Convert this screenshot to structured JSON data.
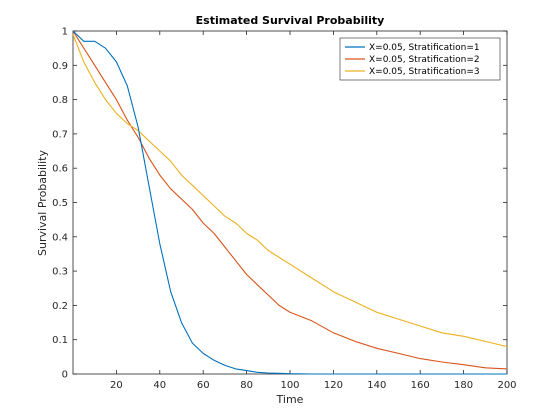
{
  "chart_data": {
    "type": "line",
    "title": "Estimated Survival Probability",
    "xlabel": "Time",
    "ylabel": "Survival Probability",
    "xlim": [
      0,
      200
    ],
    "ylim": [
      0,
      1
    ],
    "xticks": [
      "20",
      "40",
      "60",
      "80",
      "100",
      "120",
      "140",
      "160",
      "180",
      "200"
    ],
    "yticks": [
      "0",
      "0.1",
      "0.2",
      "0.3",
      "0.4",
      "0.5",
      "0.6",
      "0.7",
      "0.8",
      "0.9",
      "1"
    ],
    "grid": false,
    "legend_position": "top-right",
    "x": [
      0,
      5,
      10,
      15,
      20,
      25,
      30,
      35,
      40,
      45,
      50,
      55,
      60,
      65,
      70,
      75,
      80,
      85,
      90,
      95,
      100,
      110,
      120,
      130,
      140,
      150,
      160,
      170,
      180,
      190,
      200
    ],
    "series": [
      {
        "name": "X=0.05, Stratification=1",
        "color": "#0072BD",
        "values": [
          1.0,
          0.97,
          0.97,
          0.95,
          0.91,
          0.84,
          0.72,
          0.55,
          0.38,
          0.24,
          0.15,
          0.09,
          0.06,
          0.04,
          0.025,
          0.015,
          0.01,
          0.005,
          0.003,
          0.002,
          0.001,
          0,
          0,
          0,
          0,
          0,
          0,
          0,
          0,
          0,
          0
        ]
      },
      {
        "name": "X=0.05, Stratification=2",
        "color": "#D95319",
        "values": [
          1.0,
          0.95,
          0.9,
          0.85,
          0.8,
          0.74,
          0.69,
          0.63,
          0.58,
          0.54,
          0.51,
          0.48,
          0.44,
          0.41,
          0.37,
          0.33,
          0.29,
          0.26,
          0.23,
          0.2,
          0.18,
          0.155,
          0.12,
          0.095,
          0.075,
          0.06,
          0.045,
          0.035,
          0.027,
          0.018,
          0.015
        ]
      },
      {
        "name": "X=0.05, Stratification=3",
        "color": "#EDB120",
        "values": [
          0.99,
          0.91,
          0.85,
          0.8,
          0.76,
          0.73,
          0.71,
          0.68,
          0.65,
          0.62,
          0.58,
          0.55,
          0.52,
          0.49,
          0.46,
          0.44,
          0.41,
          0.39,
          0.36,
          0.34,
          0.32,
          0.28,
          0.24,
          0.21,
          0.18,
          0.16,
          0.14,
          0.12,
          0.11,
          0.095,
          0.08
        ]
      }
    ]
  }
}
